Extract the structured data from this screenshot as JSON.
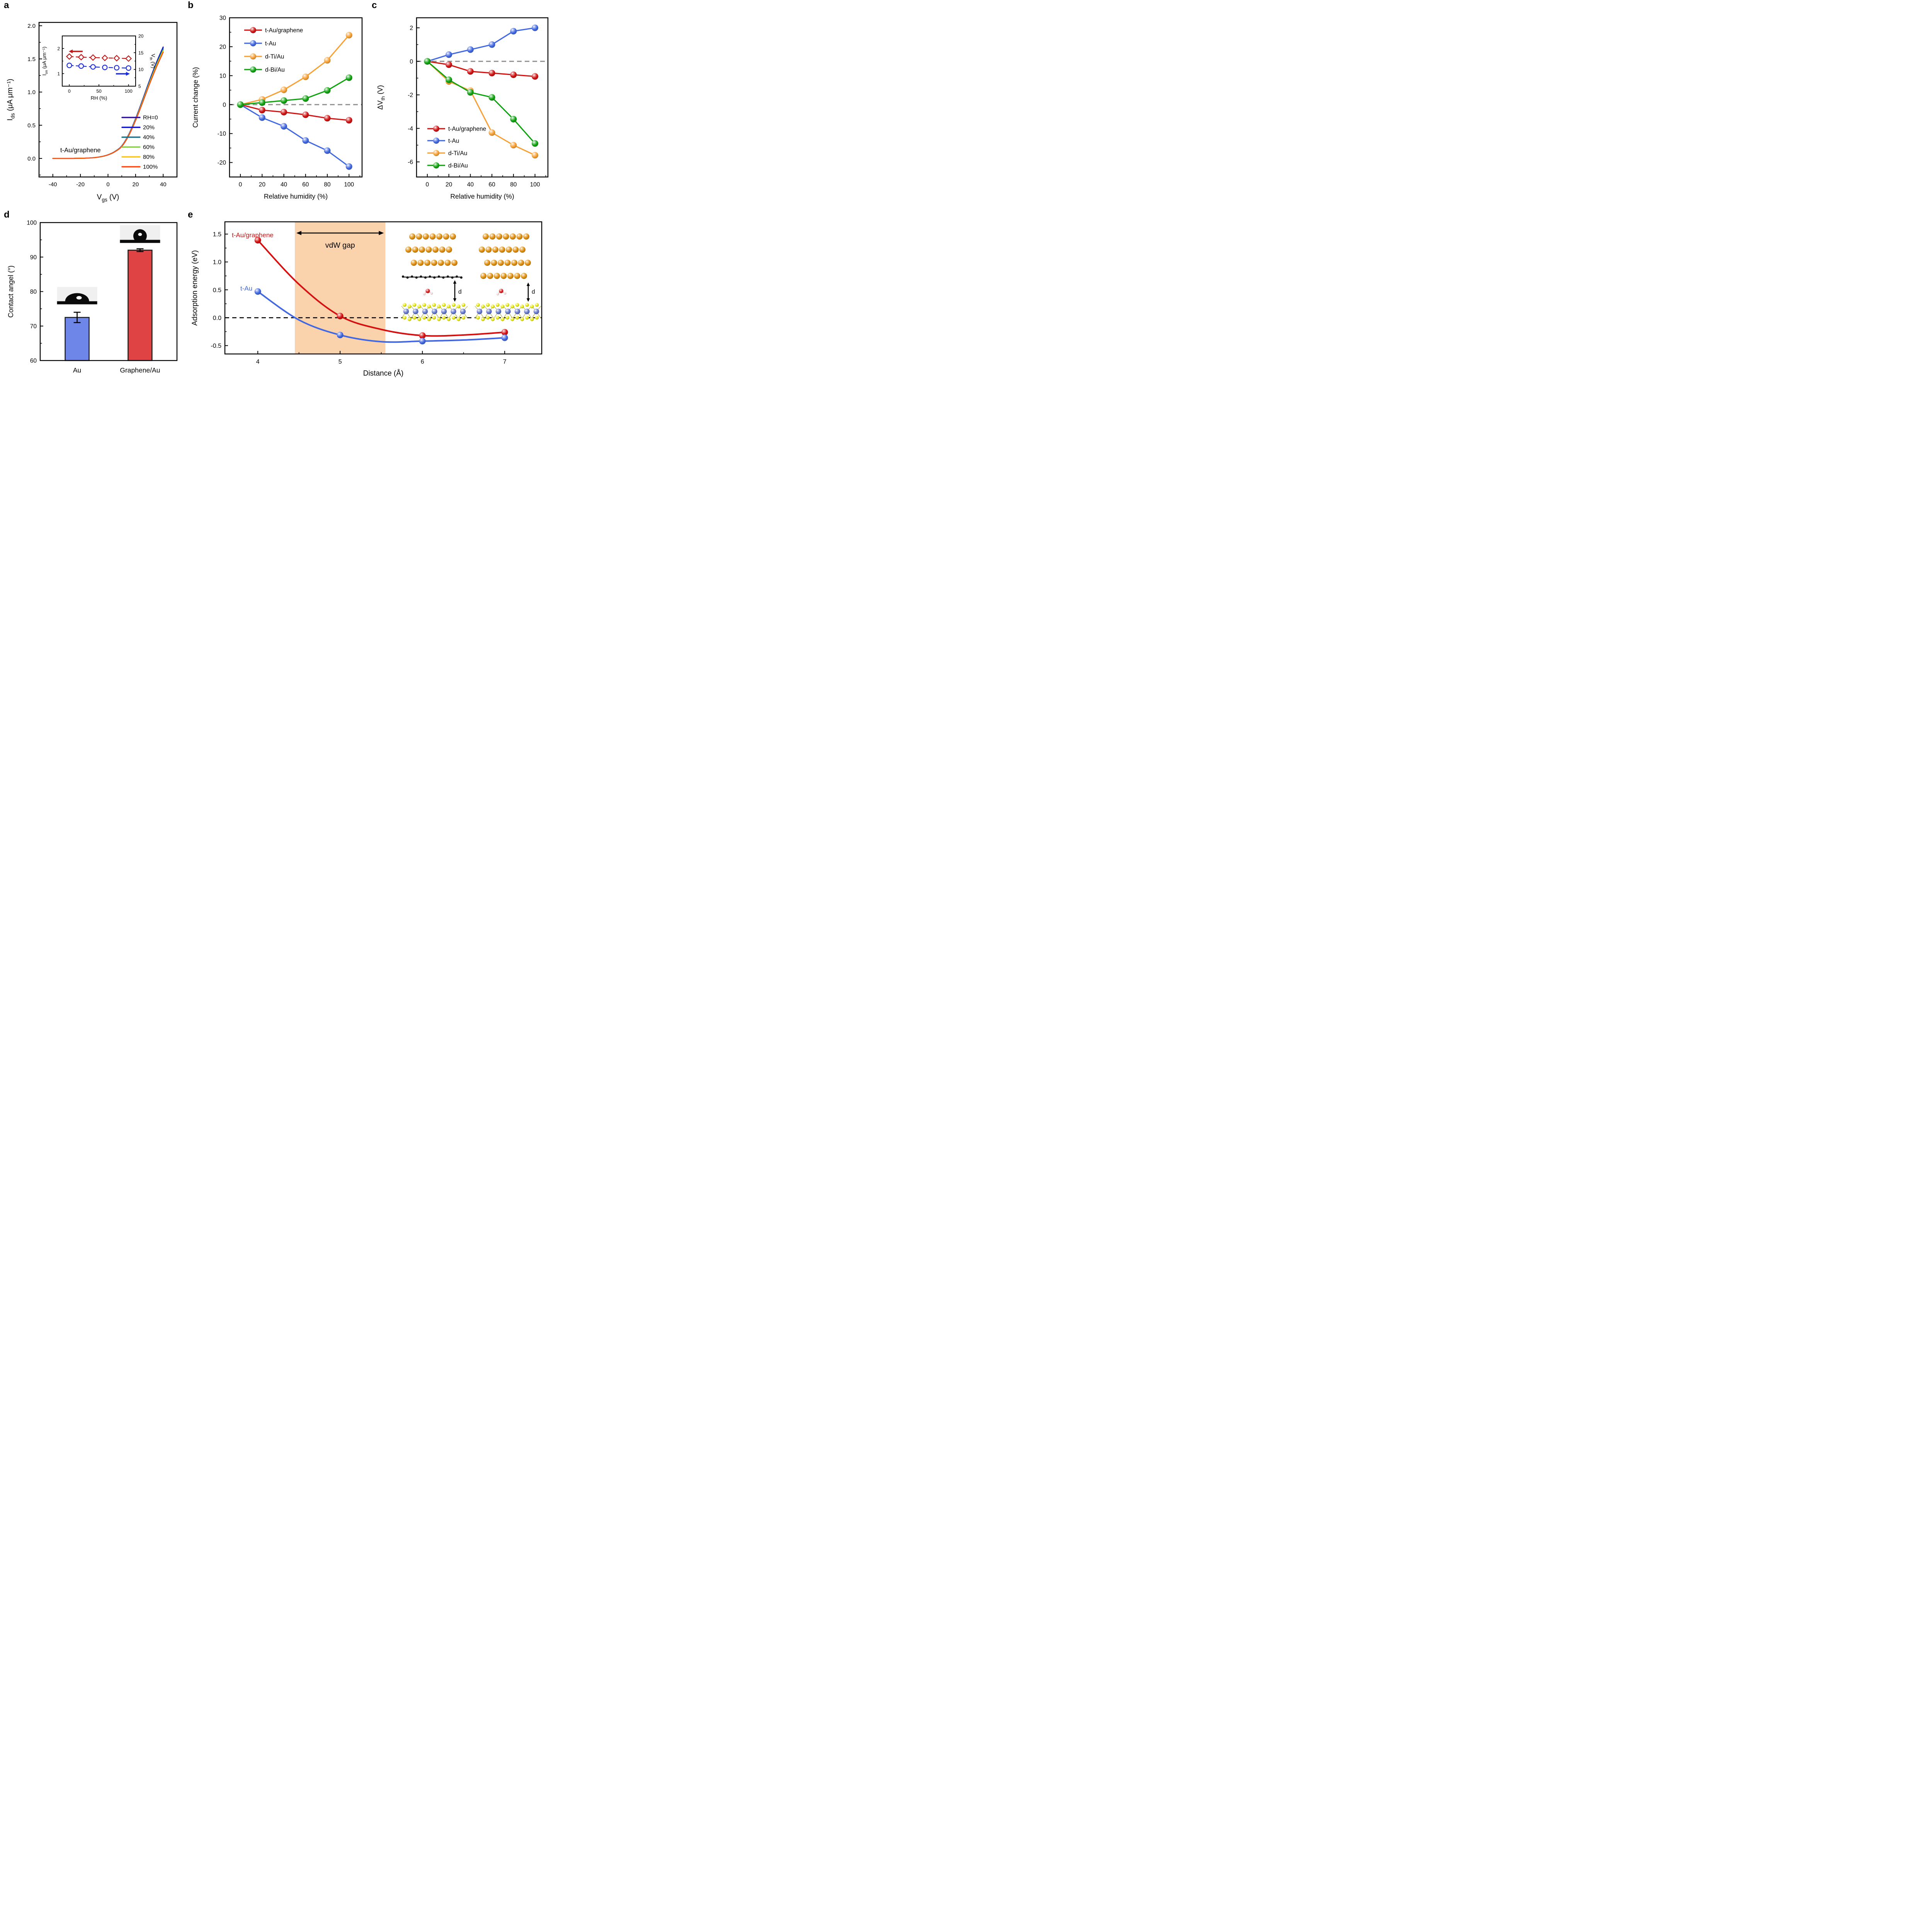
{
  "figure": {
    "background": "#ffffff",
    "panel_labels": [
      "a",
      "b",
      "c",
      "d",
      "e"
    ]
  },
  "chart_data": [
    {
      "panel": "a",
      "type": "line",
      "xlabel": {
        "pre": "V",
        "sub": "gs",
        "post": " (V)"
      },
      "ylabel": {
        "pre": "I",
        "sub": "ds",
        "post": " (μA μm⁻¹)"
      },
      "annotation": "t-Au/graphene",
      "xlim": [
        -50,
        50
      ],
      "xticks": [
        -40,
        -20,
        0,
        20,
        40
      ],
      "ylim": [
        -0.28,
        2.05
      ],
      "yticks": [
        "0.0",
        "0.5",
        "1.0",
        "1.5",
        "2.0"
      ],
      "legend_position": "lower-right",
      "series": [
        {
          "name": "RH=0",
          "color": "#31119e",
          "scale": 1.0
        },
        {
          "name": "20%",
          "color": "#1013c4",
          "scale": 0.993
        },
        {
          "name": "40%",
          "color": "#17708d",
          "scale": 0.982
        },
        {
          "name": "60%",
          "color": "#7fd32c",
          "scale": 0.97
        },
        {
          "name": "80%",
          "color": "#fdc513",
          "scale": 0.961
        },
        {
          "name": "100%",
          "color": "#fb4b14",
          "scale": 0.952
        }
      ],
      "base_curve": [
        [
          -40,
          0.0
        ],
        [
          -35,
          0.0
        ],
        [
          -30,
          0.0
        ],
        [
          -25,
          0.001
        ],
        [
          -20,
          0.002
        ],
        [
          -15,
          0.005
        ],
        [
          -10,
          0.012
        ],
        [
          -5,
          0.027
        ],
        [
          0,
          0.055
        ],
        [
          5,
          0.105
        ],
        [
          10,
          0.19
        ],
        [
          15,
          0.36
        ],
        [
          20,
          0.6
        ],
        [
          25,
          0.88
        ],
        [
          30,
          1.17
        ],
        [
          35,
          1.44
        ],
        [
          40,
          1.68
        ]
      ],
      "inset": {
        "xlabel": "RH (%)",
        "ylabel_left": {
          "pre": "I",
          "sub": "on",
          "post": " (μA μm⁻¹)"
        },
        "ylabel_right": {
          "pre": "V",
          "sub": "th",
          "post": " (V)"
        },
        "x": [
          0,
          20,
          40,
          60,
          80,
          100
        ],
        "xlim": [
          -12,
          112
        ],
        "xticks": [
          0,
          50,
          100
        ],
        "left_lim": [
          0.5,
          2.5
        ],
        "left_ticks": [
          1,
          2
        ],
        "right_lim": [
          5,
          20
        ],
        "right_ticks": [
          5,
          10,
          15,
          20
        ],
        "ion": {
          "name": "Ion",
          "color": "#c21717",
          "values": [
            1.68,
            1.655,
            1.64,
            1.625,
            1.615,
            1.6
          ]
        },
        "vth": {
          "name": "Vth",
          "color": "#1a2bd8",
          "values": [
            11.2,
            11.0,
            10.75,
            10.6,
            10.5,
            10.4
          ]
        }
      }
    },
    {
      "panel": "b",
      "type": "scatter-line",
      "xlabel": "Relative humidity (%)",
      "ylabel": "Current change (%)",
      "xlim": [
        -10,
        112
      ],
      "xticks": [
        0,
        20,
        40,
        60,
        80,
        100
      ],
      "ylim": [
        -25,
        30
      ],
      "yticks": [
        -20,
        -10,
        0,
        10,
        20,
        30
      ],
      "zero_line": true,
      "legend_position": "top-left",
      "x": [
        0,
        20,
        40,
        60,
        80,
        100
      ],
      "series": [
        {
          "name": "t-Au/graphene",
          "color": "#cf1414",
          "values": [
            0,
            -1.9,
            -2.6,
            -3.5,
            -4.7,
            -5.4
          ]
        },
        {
          "name": "t-Au",
          "color": "#4268e0",
          "values": [
            0,
            -4.5,
            -7.5,
            -12.4,
            -15.9,
            -21.4
          ]
        },
        {
          "name": "d-Ti/Au",
          "color": "#f6a137",
          "values": [
            0,
            1.8,
            5.1,
            9.6,
            15.3,
            24.0
          ]
        },
        {
          "name": "d-Bi/Au",
          "color": "#11a211",
          "values": [
            0,
            0.7,
            1.4,
            2.1,
            4.9,
            9.3
          ]
        }
      ]
    },
    {
      "panel": "c",
      "type": "scatter-line",
      "xlabel": "Relative humidity (%)",
      "ylabel": {
        "pre": "ΔV",
        "sub": "th",
        "post": " (V)"
      },
      "xlim": [
        -10,
        112
      ],
      "xticks": [
        0,
        20,
        40,
        60,
        80,
        100
      ],
      "ylim": [
        -6.9,
        2.6
      ],
      "yticks": [
        -6,
        -4,
        -2,
        0,
        2
      ],
      "zero_line": true,
      "legend_position": "bottom-left",
      "x": [
        0,
        20,
        40,
        60,
        80,
        100
      ],
      "series": [
        {
          "name": "t-Au/graphene",
          "color": "#cf1414",
          "values": [
            0,
            -0.2,
            -0.6,
            -0.7,
            -0.8,
            -0.9
          ]
        },
        {
          "name": "t-Au",
          "color": "#4268e0",
          "values": [
            0,
            0.4,
            0.7,
            1.0,
            1.8,
            2.0
          ]
        },
        {
          "name": "d-Ti/Au",
          "color": "#f6a137",
          "values": [
            0,
            -1.2,
            -1.75,
            -4.25,
            -5.0,
            -5.6
          ]
        },
        {
          "name": "d-Bi/Au",
          "color": "#11a211",
          "values": [
            0,
            -1.1,
            -1.85,
            -2.15,
            -3.45,
            -4.9
          ]
        }
      ]
    },
    {
      "panel": "d",
      "type": "bar",
      "ylabel": "Contact angel (°)",
      "categories": [
        "Au",
        "Graphene/Au"
      ],
      "values": [
        72.5,
        92.0
      ],
      "errors": [
        1.5,
        0.4
      ],
      "bar_colors": [
        "#6e86e8",
        "#e04343"
      ],
      "bar_outline": "#141414",
      "ylim": [
        60,
        100
      ],
      "yticks": [
        60,
        70,
        80,
        90,
        100
      ]
    },
    {
      "panel": "e",
      "type": "line",
      "xlabel": "Distance (Å)",
      "ylabel": "Adsorption energy (eV)",
      "xlim": [
        3.6,
        7.45
      ],
      "xticks": [
        4,
        5,
        6,
        7
      ],
      "ylim": [
        -0.65,
        1.72
      ],
      "yticks": [
        "-0.5",
        "0.0",
        "0.5",
        "1.0",
        "1.5"
      ],
      "zero_dash": true,
      "band": {
        "x0": 4.45,
        "x1": 5.55,
        "color": "#fad2ab",
        "label": "vdW gap"
      },
      "x": [
        4,
        5,
        6,
        7
      ],
      "series": [
        {
          "name": "t-Au/graphene",
          "color": "#d51010",
          "values": [
            1.39,
            0.03,
            -0.32,
            -0.26
          ],
          "curve": [
            [
              4,
              1.39
            ],
            [
              4.5,
              0.6
            ],
            [
              5,
              0.03
            ],
            [
              5.5,
              -0.21
            ],
            [
              6,
              -0.32
            ],
            [
              6.5,
              -0.31
            ],
            [
              7,
              -0.26
            ]
          ]
        },
        {
          "name": "t-Au",
          "color": "#4268e0",
          "values": [
            0.47,
            -0.31,
            -0.42,
            -0.36
          ],
          "curve": [
            [
              4,
              0.47
            ],
            [
              4.5,
              -0.04
            ],
            [
              5,
              -0.31
            ],
            [
              5.5,
              -0.43
            ],
            [
              6,
              -0.42
            ],
            [
              6.5,
              -0.4
            ],
            [
              7,
              -0.36
            ]
          ]
        }
      ],
      "insets": [
        {
          "name": "t-Au/graphene structure",
          "gold_rows": 3,
          "has_graphene": true,
          "d_label": "d"
        },
        {
          "name": "t-Au structure",
          "gold_rows": 4,
          "has_graphene": false,
          "d_label": "d"
        }
      ],
      "atom_colors": {
        "gold": "#df8f0f",
        "carbon": "#161616",
        "oxygen": "#d81e1e",
        "hydrogen": "#eed6d6",
        "sulfur": "#e4e412",
        "metal_blue": "#6377cc"
      }
    }
  ]
}
